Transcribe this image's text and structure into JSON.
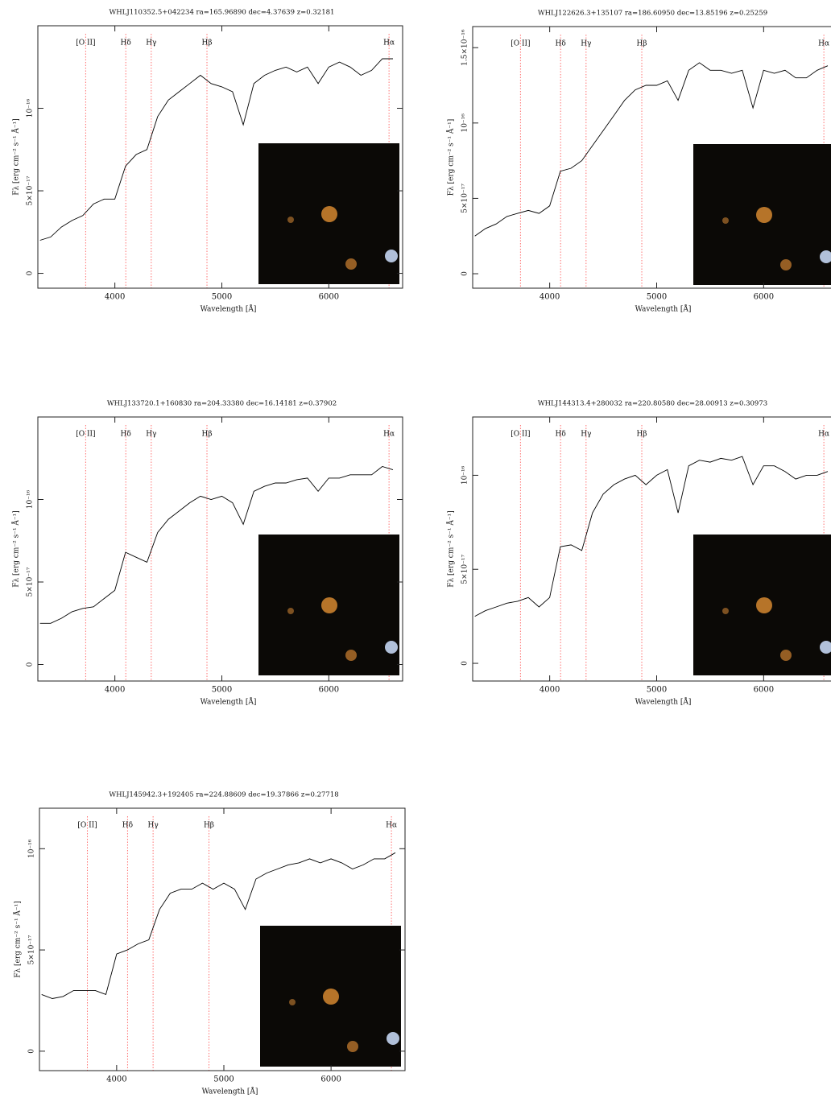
{
  "chart_data": [
    {
      "type": "line",
      "title": "WHLJ110352.5+042234 ra=165.96890 dec=4.37639 z=0.32181",
      "x_label": "Wavelength [Å]",
      "y_label": "Fλ [erg cm⁻² s⁻¹ Å⁻¹]",
      "color": "#000000",
      "marker_color": "#ff7070",
      "x": [
        3300,
        3400,
        3500,
        3600,
        3700,
        3800,
        3900,
        4000,
        4100,
        4200,
        4300,
        4400,
        4500,
        4600,
        4700,
        4800,
        4900,
        5000,
        5100,
        5200,
        5300,
        5400,
        5500,
        5600,
        5700,
        5800,
        5900,
        6000,
        6100,
        6200,
        6300,
        6400,
        6500,
        6600
      ],
      "values": [
        2e-17,
        2.2e-17,
        2.8e-17,
        3.2e-17,
        3.5e-17,
        4.2e-17,
        4.5e-17,
        4.5e-17,
        6.5e-17,
        7.2e-17,
        7.5e-17,
        9.5e-17,
        1.05e-16,
        1.1e-16,
        1.15e-16,
        1.2e-16,
        1.15e-16,
        1.13e-16,
        1.1e-16,
        9e-17,
        1.15e-16,
        1.2e-16,
        1.23e-16,
        1.25e-16,
        1.22e-16,
        1.25e-16,
        1.15e-16,
        1.25e-16,
        1.28e-16,
        1.25e-16,
        1.2e-16,
        1.23e-16,
        1.3e-16,
        1.3e-16
      ],
      "lines": [
        {
          "label": "[O II]",
          "x": 3727
        },
        {
          "label": "Hδ",
          "x": 4102
        },
        {
          "label": "Hγ",
          "x": 4340
        },
        {
          "label": "Hβ",
          "x": 4861
        },
        {
          "label": "Hα",
          "x": 6563
        }
      ],
      "xlim": [
        3280,
        6690
      ],
      "xticks": [
        4000,
        5000,
        6000
      ],
      "ylim": [
        -9e-18,
        1.5e-16
      ],
      "yticks": [
        0,
        {
          "value": 5e-17,
          "label": "5×10⁻¹⁷"
        },
        {
          "value": 1e-16,
          "label": "10⁻¹⁶"
        }
      ]
    },
    {
      "type": "line",
      "title": "WHLJ122626.3+135107 ra=186.60950 dec=13.85196 z=0.25259",
      "x_label": "Wavelength [Å]",
      "y_label": "Fλ [erg cm⁻² s⁻¹ Å⁻¹]",
      "color": "#000000",
      "marker_color": "#ff7070",
      "x": [
        3300,
        3400,
        3500,
        3600,
        3700,
        3800,
        3900,
        4000,
        4100,
        4200,
        4300,
        4400,
        4500,
        4600,
        4700,
        4800,
        4900,
        5000,
        5100,
        5200,
        5300,
        5400,
        5500,
        5600,
        5700,
        5800,
        5900,
        6000,
        6100,
        6200,
        6300,
        6400,
        6500,
        6600
      ],
      "values": [
        2.5e-17,
        3e-17,
        3.3e-17,
        3.8e-17,
        4e-17,
        4.2e-17,
        4e-17,
        4.5e-17,
        6.8e-17,
        7e-17,
        7.5e-17,
        8.5e-17,
        9.5e-17,
        1.05e-16,
        1.15e-16,
        1.22e-16,
        1.25e-16,
        1.25e-16,
        1.28e-16,
        1.15e-16,
        1.35e-16,
        1.4e-16,
        1.35e-16,
        1.35e-16,
        1.33e-16,
        1.35e-16,
        1.1e-16,
        1.35e-16,
        1.33e-16,
        1.35e-16,
        1.3e-16,
        1.3e-16,
        1.35e-16,
        1.38e-16
      ],
      "lines": [
        {
          "label": "[O II]",
          "x": 3727
        },
        {
          "label": "Hδ",
          "x": 4102
        },
        {
          "label": "Hγ",
          "x": 4340
        },
        {
          "label": "Hβ",
          "x": 4861
        },
        {
          "label": "Hα",
          "x": 6563
        }
      ],
      "xlim": [
        3280,
        6690
      ],
      "xticks": [
        4000,
        5000,
        6000
      ],
      "ylim": [
        -9.6e-18,
        1.64e-16
      ],
      "yticks": [
        0,
        {
          "value": 5e-17,
          "label": "5×10⁻¹⁷"
        },
        {
          "value": 1e-16,
          "label": "10⁻¹⁶"
        },
        {
          "value": 1.5e-16,
          "label": "1.5×10⁻¹⁶"
        }
      ]
    },
    {
      "type": "line",
      "title": "WHLJ133720.1+160830 ra=204.33380 dec=16.14181 z=0.37902",
      "x_label": "Wavelength [Å]",
      "y_label": "Fλ [erg cm⁻² s⁻¹ Å⁻¹]",
      "color": "#000000",
      "marker_color": "#ff7070",
      "x": [
        3300,
        3400,
        3500,
        3600,
        3700,
        3800,
        3900,
        4000,
        4100,
        4200,
        4300,
        4400,
        4500,
        4600,
        4700,
        4800,
        4900,
        5000,
        5100,
        5200,
        5300,
        5400,
        5500,
        5600,
        5700,
        5800,
        5900,
        6000,
        6100,
        6200,
        6300,
        6400,
        6500,
        6600
      ],
      "values": [
        2.5e-17,
        2.5e-17,
        2.8e-17,
        3.2e-17,
        3.4e-17,
        3.5e-17,
        4e-17,
        4.5e-17,
        6.8e-17,
        6.5e-17,
        6.2e-17,
        8e-17,
        8.8e-17,
        9.3e-17,
        9.8e-17,
        1.02e-16,
        1e-16,
        1.02e-16,
        9.8e-17,
        8.5e-17,
        1.05e-16,
        1.08e-16,
        1.1e-16,
        1.1e-16,
        1.12e-16,
        1.13e-16,
        1.05e-16,
        1.13e-16,
        1.13e-16,
        1.15e-16,
        1.15e-16,
        1.15e-16,
        1.2e-16,
        1.18e-16
      ],
      "lines": [
        {
          "label": "[O II]",
          "x": 3727
        },
        {
          "label": "Hδ",
          "x": 4102
        },
        {
          "label": "Hγ",
          "x": 4340
        },
        {
          "label": "Hβ",
          "x": 4861
        },
        {
          "label": "Hα",
          "x": 6563
        }
      ],
      "xlim": [
        3280,
        6690
      ],
      "xticks": [
        4000,
        5000,
        6000
      ],
      "ylim": [
        -1e-17,
        1.5e-16
      ],
      "yticks": [
        0,
        {
          "value": 5e-17,
          "label": "5×10⁻¹⁷"
        },
        {
          "value": 1e-16,
          "label": "10⁻¹⁶"
        }
      ]
    },
    {
      "type": "line",
      "title": "WHLJ144313.4+280032 ra=220.80580 dec=28.00913 z=0.30973",
      "x_label": "Wavelength [Å]",
      "y_label": "Fλ [erg cm⁻² s⁻¹ Å⁻¹]",
      "color": "#000000",
      "marker_color": "#ff7070",
      "x": [
        3300,
        3400,
        3500,
        3600,
        3700,
        3800,
        3900,
        4000,
        4100,
        4200,
        4300,
        4400,
        4500,
        4600,
        4700,
        4800,
        4900,
        5000,
        5100,
        5200,
        5300,
        5400,
        5500,
        5600,
        5700,
        5800,
        5900,
        6000,
        6100,
        6200,
        6300,
        6400,
        6500,
        6600
      ],
      "values": [
        2.5e-17,
        2.8e-17,
        3e-17,
        3.2e-17,
        3.3e-17,
        3.5e-17,
        3e-17,
        3.5e-17,
        6.2e-17,
        6.3e-17,
        6e-17,
        8e-17,
        9e-17,
        9.5e-17,
        9.8e-17,
        1e-16,
        9.5e-17,
        1e-16,
        1.03e-16,
        8e-17,
        1.05e-16,
        1.08e-16,
        1.07e-16,
        1.09e-16,
        1.08e-16,
        1.1e-16,
        9.5e-17,
        1.05e-16,
        1.05e-16,
        1.02e-16,
        9.8e-17,
        1e-16,
        1e-16,
        1.02e-16
      ],
      "lines": [
        {
          "label": "[O II]",
          "x": 3727
        },
        {
          "label": "Hδ",
          "x": 4102
        },
        {
          "label": "Hγ",
          "x": 4340
        },
        {
          "label": "Hβ",
          "x": 4861
        },
        {
          "label": "Hα",
          "x": 6563
        }
      ],
      "xlim": [
        3280,
        6690
      ],
      "xticks": [
        4000,
        5000,
        6000
      ],
      "ylim": [
        -9.4e-18,
        1.31e-16
      ],
      "yticks": [
        0,
        {
          "value": 5e-17,
          "label": "5×10⁻¹⁷"
        },
        {
          "value": 1e-16,
          "label": "10⁻¹⁶"
        }
      ]
    },
    {
      "type": "line",
      "title": "WHLJ145942.3+192405 ra=224.88609 dec=19.37866 z=0.27718",
      "x_label": "Wavelength [Å]",
      "y_label": "Fλ [erg cm⁻² s⁻¹ Å⁻¹]",
      "color": "#000000",
      "marker_color": "#ff7070",
      "x": [
        3300,
        3400,
        3500,
        3600,
        3700,
        3800,
        3900,
        4000,
        4100,
        4200,
        4300,
        4400,
        4500,
        4600,
        4700,
        4800,
        4900,
        5000,
        5100,
        5200,
        5300,
        5400,
        5500,
        5600,
        5700,
        5800,
        5900,
        6000,
        6100,
        6200,
        6300,
        6400,
        6500,
        6600
      ],
      "values": [
        2.8e-17,
        2.6e-17,
        2.7e-17,
        3e-17,
        3e-17,
        3e-17,
        2.8e-17,
        4.8e-17,
        5e-17,
        5.3e-17,
        5.5e-17,
        7e-17,
        7.8e-17,
        8e-17,
        8e-17,
        8.3e-17,
        8e-17,
        8.3e-17,
        8e-17,
        7e-17,
        8.5e-17,
        8.8e-17,
        9e-17,
        9.2e-17,
        9.3e-17,
        9.5e-17,
        9.3e-17,
        9.5e-17,
        9.3e-17,
        9e-17,
        9.2e-17,
        9.5e-17,
        9.5e-17,
        9.8e-17
      ],
      "lines": [
        {
          "label": "[O II]",
          "x": 3727
        },
        {
          "label": "Hδ",
          "x": 4102
        },
        {
          "label": "Hγ",
          "x": 4340
        },
        {
          "label": "Hβ",
          "x": 4861
        },
        {
          "label": "Hα",
          "x": 6563
        }
      ],
      "xlim": [
        3280,
        6690
      ],
      "xticks": [
        4000,
        5000,
        6000
      ],
      "ylim": [
        -9.6e-18,
        1.2e-16
      ],
      "yticks": [
        0,
        {
          "value": 5e-17,
          "label": "5×10⁻¹⁷"
        },
        {
          "value": 1e-16,
          "label": "10⁻¹⁶"
        }
      ]
    }
  ]
}
